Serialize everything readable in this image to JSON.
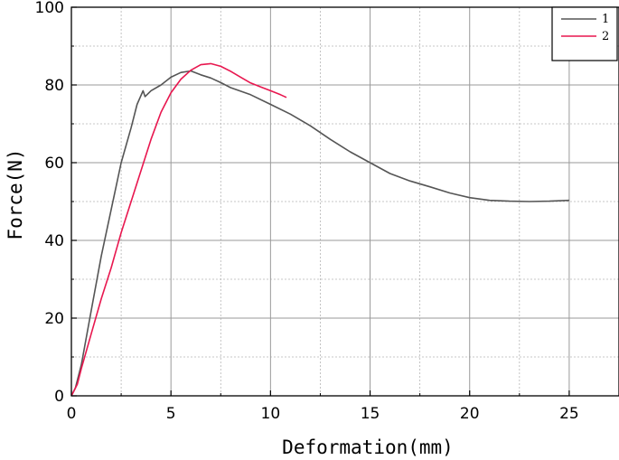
{
  "chart_data": {
    "type": "line",
    "xlabel": "Deformation(mm)",
    "ylabel": "Force(N)",
    "xlim": [
      0,
      27.5
    ],
    "ylim": [
      0,
      100
    ],
    "x_ticks": [
      "0",
      "5",
      "10",
      "15",
      "20",
      "25"
    ],
    "y_ticks": [
      "0",
      "20",
      "40",
      "60",
      "80",
      "100"
    ],
    "grid": "dashed minor and solid major",
    "legend_position": "top-right",
    "colors": {
      "1": "#555555",
      "2": "#e8174f"
    },
    "series": [
      {
        "name": "1",
        "points": [
          [
            0,
            0
          ],
          [
            0.2,
            2
          ],
          [
            0.5,
            8
          ],
          [
            1.0,
            22
          ],
          [
            1.5,
            36
          ],
          [
            2.0,
            48
          ],
          [
            2.5,
            60
          ],
          [
            3.0,
            69
          ],
          [
            3.3,
            75
          ],
          [
            3.6,
            78.5
          ],
          [
            3.7,
            77
          ],
          [
            4.0,
            78.5
          ],
          [
            4.5,
            80
          ],
          [
            5.0,
            82
          ],
          [
            5.5,
            83.2
          ],
          [
            6.0,
            83.6
          ],
          [
            6.5,
            82.6
          ],
          [
            7.0,
            81.8
          ],
          [
            7.5,
            80.6
          ],
          [
            8.0,
            79.3
          ],
          [
            9.0,
            77.5
          ],
          [
            10.0,
            75
          ],
          [
            11.0,
            72.5
          ],
          [
            12.0,
            69.5
          ],
          [
            13.0,
            66
          ],
          [
            14.0,
            62.8
          ],
          [
            15.0,
            60
          ],
          [
            16.0,
            57.2
          ],
          [
            17.0,
            55.3
          ],
          [
            18.0,
            53.8
          ],
          [
            19.0,
            52.2
          ],
          [
            20.0,
            51
          ],
          [
            21.0,
            50.3
          ],
          [
            22.0,
            50.1
          ],
          [
            23.0,
            50
          ],
          [
            24.0,
            50.1
          ],
          [
            25.0,
            50.3
          ]
        ]
      },
      {
        "name": "2",
        "points": [
          [
            0,
            0
          ],
          [
            0.3,
            3
          ],
          [
            0.5,
            7
          ],
          [
            1.0,
            16
          ],
          [
            1.5,
            25
          ],
          [
            2.0,
            33
          ],
          [
            2.5,
            42
          ],
          [
            3.0,
            50
          ],
          [
            3.5,
            58
          ],
          [
            4.0,
            66
          ],
          [
            4.5,
            73
          ],
          [
            5.0,
            78
          ],
          [
            5.5,
            81.5
          ],
          [
            6.0,
            83.8
          ],
          [
            6.5,
            85.2
          ],
          [
            7.0,
            85.5
          ],
          [
            7.5,
            84.8
          ],
          [
            8.0,
            83.5
          ],
          [
            8.5,
            82
          ],
          [
            9.0,
            80.5
          ],
          [
            9.5,
            79.5
          ],
          [
            10.0,
            78.5
          ],
          [
            10.5,
            77.5
          ],
          [
            10.8,
            76.8
          ]
        ]
      }
    ]
  }
}
